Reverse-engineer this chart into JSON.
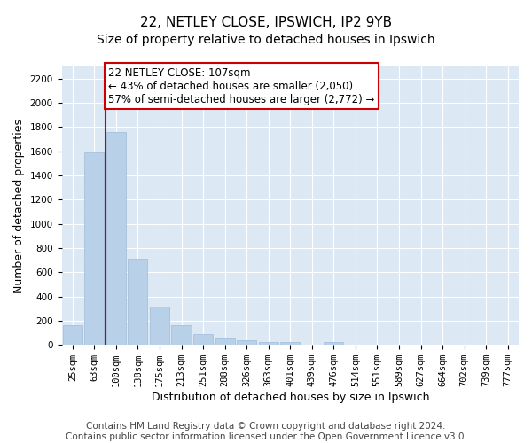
{
  "title_line1": "22, NETLEY CLOSE, IPSWICH, IP2 9YB",
  "title_line2": "Size of property relative to detached houses in Ipswich",
  "xlabel": "Distribution of detached houses by size in Ipswich",
  "ylabel": "Number of detached properties",
  "bar_color": "#b8d0e8",
  "bar_edgecolor": "#a0bcd8",
  "background_color": "#dce9f5",
  "grid_color": "#ffffff",
  "categories": [
    "25sqm",
    "63sqm",
    "100sqm",
    "138sqm",
    "175sqm",
    "213sqm",
    "251sqm",
    "288sqm",
    "326sqm",
    "363sqm",
    "401sqm",
    "439sqm",
    "476sqm",
    "514sqm",
    "551sqm",
    "589sqm",
    "627sqm",
    "664sqm",
    "702sqm",
    "739sqm",
    "777sqm"
  ],
  "values": [
    160,
    1590,
    1760,
    710,
    315,
    160,
    90,
    55,
    35,
    25,
    20,
    5,
    20,
    0,
    0,
    0,
    0,
    0,
    0,
    0,
    0
  ],
  "ylim": [
    0,
    2300
  ],
  "yticks": [
    0,
    200,
    400,
    600,
    800,
    1000,
    1200,
    1400,
    1600,
    1800,
    2000,
    2200
  ],
  "property_label": "22 NETLEY CLOSE: 107sqm",
  "annotation_line1": "← 43% of detached houses are smaller (2,050)",
  "annotation_line2": "57% of semi-detached houses are larger (2,772) →",
  "vline_x_index": 2,
  "annotation_box_color": "#ffffff",
  "annotation_box_edgecolor": "#cc0000",
  "vline_color": "#cc0000",
  "footer_line1": "Contains HM Land Registry data © Crown copyright and database right 2024.",
  "footer_line2": "Contains public sector information licensed under the Open Government Licence v3.0.",
  "title_fontsize": 11,
  "subtitle_fontsize": 10,
  "axis_label_fontsize": 9,
  "tick_fontsize": 7.5,
  "annotation_fontsize": 8.5,
  "footer_fontsize": 7.5
}
